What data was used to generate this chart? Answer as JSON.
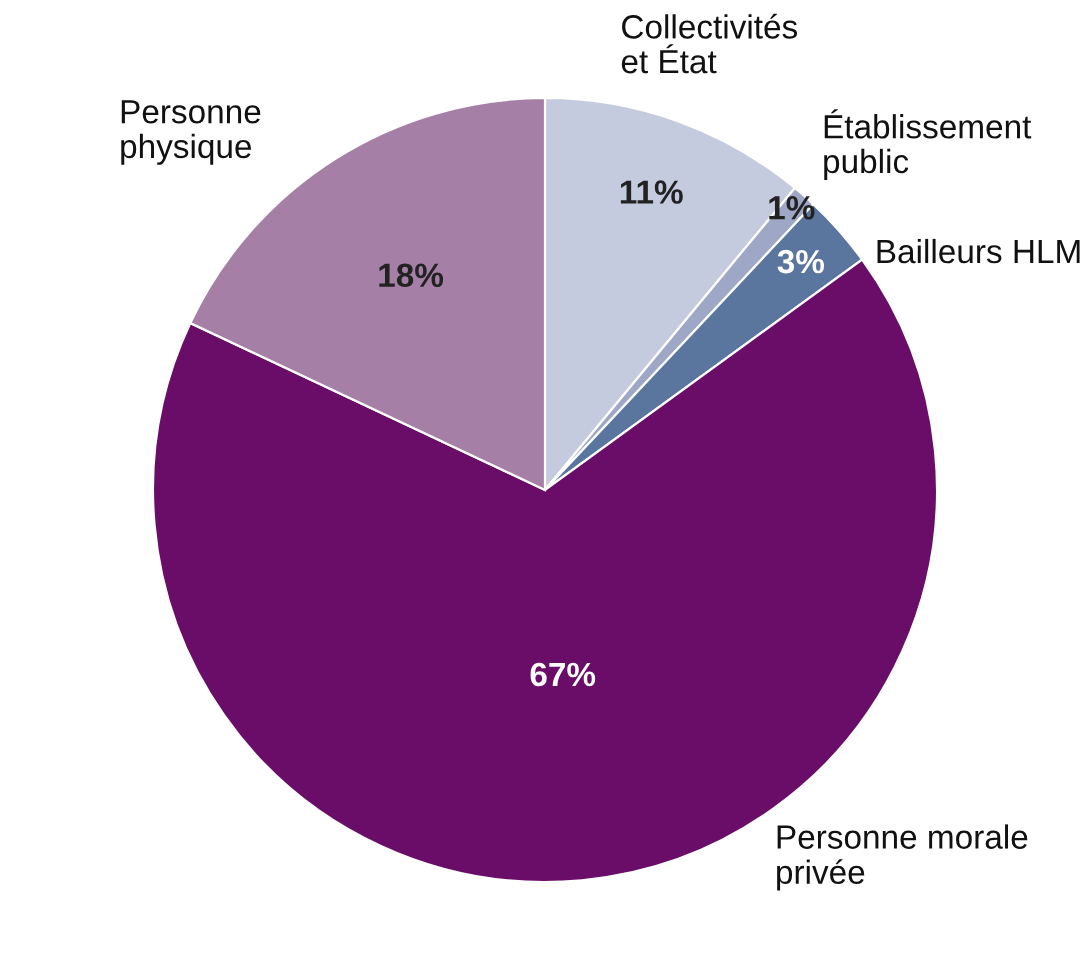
{
  "chart_data": {
    "type": "pie",
    "categories": [
      "Collectivités\net État",
      "Établissement\npublic",
      "Bailleurs HLM",
      "Personne morale\nprivée",
      "Personne\nphysique"
    ],
    "values": [
      11,
      1,
      3,
      67,
      18
    ],
    "colors": [
      "#c5cbdf",
      "#9ea8c6",
      "#5b769e",
      "#6a0d68",
      "#a57fa6"
    ],
    "value_labels": [
      "11%",
      "1%",
      "3%",
      "67%",
      "18%"
    ]
  }
}
